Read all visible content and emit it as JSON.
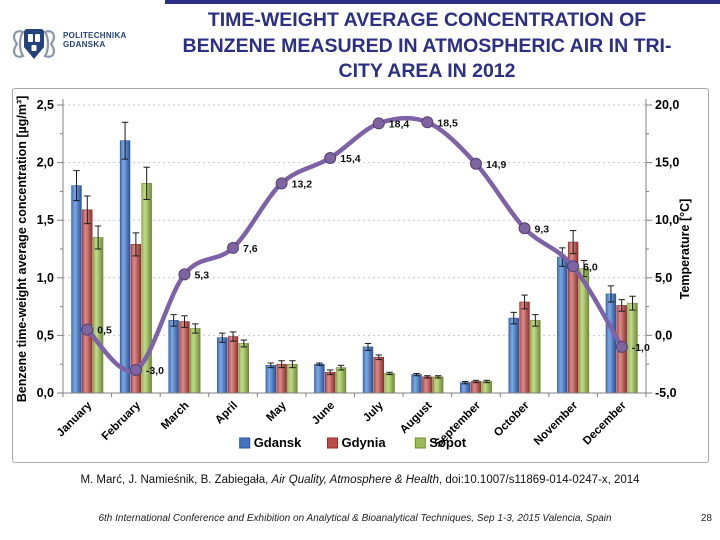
{
  "slide": {
    "logo": {
      "line1": "POLITECHNIKA",
      "line2": "GDANSKA"
    },
    "title_lines": [
      "TIME-WEIGHT AVERAGE CONCENTRATION OF",
      "BENZENE MEASURED IN ATMOSPHERIC AIR IN TRI-",
      "CITY AREA IN 2012"
    ],
    "title_color": "#2b2f85",
    "citation": {
      "authors": "M. Marć, J. Namieśnik, B. Zabiegała, ",
      "journal": "Air Quality, Atmosphere & Health",
      "tail": ", doi:10.1007/s11869-014-0247-x, 2014"
    },
    "footer": {
      "conference": "6th International Conference and Exhibition on Analytical & Bioanalytical Techniques, Sep 1-3, 2015 Valencia, Spain",
      "page": "28"
    }
  },
  "chart_data": {
    "type": "bar+line",
    "categories": [
      "January",
      "February",
      "March",
      "April",
      "May",
      "June",
      "July",
      "August",
      "September",
      "October",
      "November",
      "December"
    ],
    "series": [
      {
        "name": "Gdansk",
        "type": "bar",
        "axis": "left",
        "fill": {
          "light": "#7fa7df",
          "mid": "#4374c0",
          "dark": "#2a549b"
        },
        "values": [
          1.8,
          2.19,
          0.63,
          0.48,
          0.24,
          0.25,
          0.4,
          0.16,
          0.09,
          0.65,
          1.18,
          0.86
        ],
        "errors": [
          0.13,
          0.16,
          0.05,
          0.04,
          0.02,
          0.01,
          0.03,
          0.01,
          0.01,
          0.05,
          0.08,
          0.07
        ]
      },
      {
        "name": "Gdynia",
        "type": "bar",
        "axis": "left",
        "fill": {
          "light": "#d88e8b",
          "mid": "#be4b48",
          "dark": "#8f302e"
        },
        "values": [
          1.59,
          1.29,
          0.62,
          0.49,
          0.25,
          0.18,
          0.31,
          0.14,
          0.1,
          0.79,
          1.31,
          0.76
        ],
        "errors": [
          0.12,
          0.1,
          0.05,
          0.04,
          0.03,
          0.02,
          0.02,
          0.01,
          0.01,
          0.06,
          0.1,
          0.05
        ]
      },
      {
        "name": "Sopot",
        "type": "bar",
        "axis": "left",
        "fill": {
          "light": "#c2d98a",
          "mid": "#9bbb59",
          "dark": "#6e8c35"
        },
        "values": [
          1.35,
          1.82,
          0.56,
          0.43,
          0.25,
          0.22,
          0.17,
          0.14,
          0.1,
          0.63,
          1.08,
          0.78
        ],
        "errors": [
          0.1,
          0.14,
          0.04,
          0.03,
          0.03,
          0.02,
          0.01,
          0.01,
          0.01,
          0.05,
          0.07,
          0.06
        ]
      },
      {
        "name": "Temperature",
        "type": "line",
        "axis": "right",
        "color": "#7d62a8",
        "marker": "#8064a2",
        "marker_dark": "#54416f",
        "values": [
          0.5,
          -3.0,
          5.3,
          7.6,
          13.2,
          15.4,
          18.4,
          18.5,
          14.9,
          9.3,
          6.0,
          -1.0
        ],
        "labels": [
          "0,5",
          "-3,0",
          "5,3",
          "7,6",
          "13,2",
          "15,4",
          "18,4",
          "18,5",
          "14,9",
          "9,3",
          "6,0",
          "-1,0"
        ]
      }
    ],
    "left_axis": {
      "title": "Benzene time-weight average concentration [µg/m³]",
      "min": 0,
      "max": 2.5,
      "ticks": [
        "0,0",
        "0,5",
        "1,0",
        "1,5",
        "2,0",
        "2,5"
      ]
    },
    "right_axis": {
      "title": "Temperature [°C]",
      "min": -5,
      "max": 20,
      "ticks": [
        "-5,0",
        "0,0",
        "5,0",
        "10,0",
        "15,0",
        "20,0"
      ]
    },
    "legend": [
      "Gdansk",
      "Gdynia",
      "Sopot"
    ],
    "grid": "horizontal-dashed",
    "legend_position": "bottom-center"
  }
}
